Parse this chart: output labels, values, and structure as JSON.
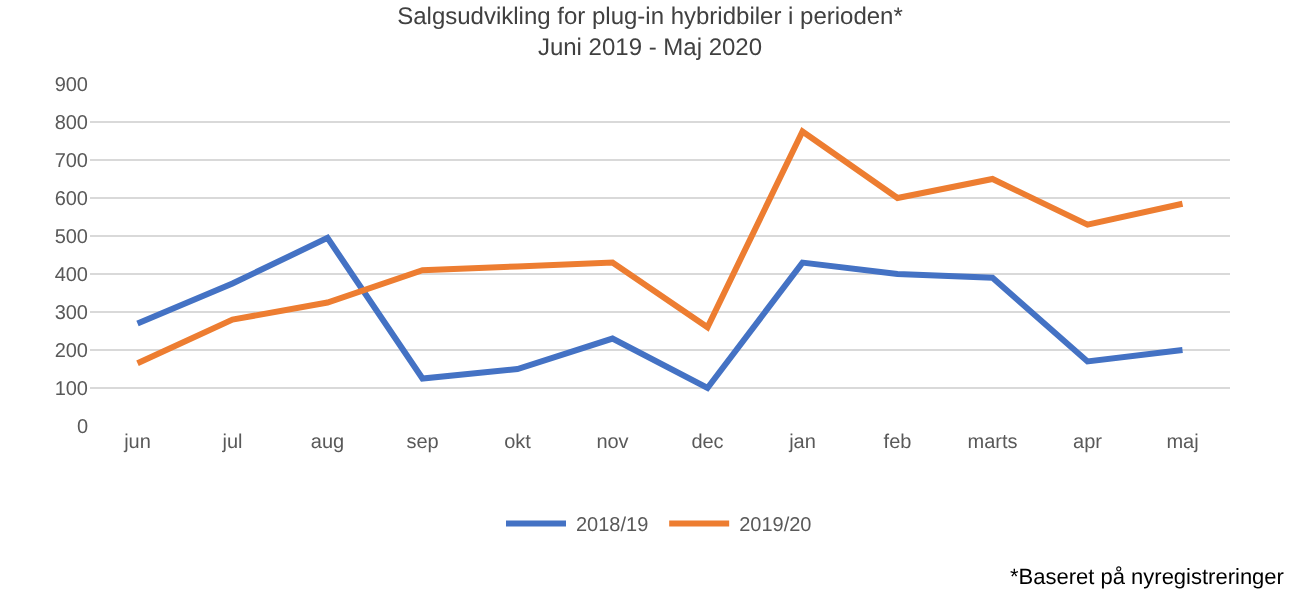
{
  "chart_data": {
    "type": "line",
    "title": "Salgsudvikling for plug-in hybridbiler i perioden*\nJuni 2019 - Maj 2020",
    "categories": [
      "jun",
      "jul",
      "aug",
      "sep",
      "okt",
      "nov",
      "dec",
      "jan",
      "feb",
      "marts",
      "apr",
      "maj"
    ],
    "series": [
      {
        "name": "2018/19",
        "color": "#4472c4",
        "values": [
          270,
          375,
          495,
          125,
          150,
          230,
          100,
          430,
          400,
          390,
          170,
          200
        ]
      },
      {
        "name": "2019/20",
        "color": "#ed7d31",
        "values": [
          165,
          280,
          325,
          410,
          420,
          430,
          260,
          775,
          600,
          650,
          530,
          585
        ]
      }
    ],
    "ylim": [
      0,
      900
    ],
    "yticks": [
      0,
      100,
      200,
      300,
      400,
      500,
      600,
      700,
      800,
      900
    ],
    "grid": "y",
    "legend": "bottom",
    "marker": "none",
    "line_style": "solid",
    "annotations": [
      "*Baseret på nyregistreringer"
    ]
  }
}
